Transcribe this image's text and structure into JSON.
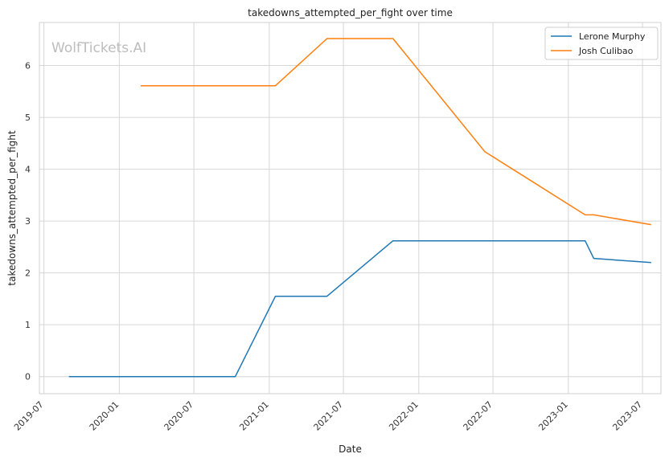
{
  "chart_data": {
    "type": "line",
    "title": "takedowns_attempted_per_fight over time",
    "xlabel": "Date",
    "ylabel": "takedowns_attempted_per_fight",
    "watermark": "WolfTickets.AI",
    "x_ticks": [
      "2019-07",
      "2020-01",
      "2020-07",
      "2021-01",
      "2021-07",
      "2022-01",
      "2022-07",
      "2023-01",
      "2023-07"
    ],
    "y_ticks": [
      0,
      1,
      2,
      3,
      4,
      5,
      6
    ],
    "ylim": [
      -0.33,
      6.83
    ],
    "xlim": [
      "2019-06-20",
      "2023-08-15"
    ],
    "grid": true,
    "legend_position": "top-right",
    "series": [
      {
        "name": "Lerone Murphy",
        "color": "#1f77b4",
        "points": [
          {
            "x": "2019-08-31",
            "y": 0.0
          },
          {
            "x": "2020-10-10",
            "y": 0.0
          },
          {
            "x": "2021-01-16",
            "y": 1.55
          },
          {
            "x": "2021-05-22",
            "y": 1.55
          },
          {
            "x": "2021-10-30",
            "y": 2.62
          },
          {
            "x": "2023-02-11",
            "y": 2.62
          },
          {
            "x": "2023-03-04",
            "y": 2.28
          },
          {
            "x": "2023-07-22",
            "y": 2.2
          }
        ]
      },
      {
        "name": "Josh Culibao",
        "color": "#ff7f0e",
        "points": [
          {
            "x": "2020-02-22",
            "y": 5.61
          },
          {
            "x": "2021-01-16",
            "y": 5.61
          },
          {
            "x": "2021-05-22",
            "y": 6.52
          },
          {
            "x": "2021-10-30",
            "y": 6.52
          },
          {
            "x": "2022-06-11",
            "y": 4.34
          },
          {
            "x": "2023-02-11",
            "y": 3.12
          },
          {
            "x": "2023-03-04",
            "y": 3.12
          },
          {
            "x": "2023-07-22",
            "y": 2.93
          }
        ]
      }
    ]
  }
}
